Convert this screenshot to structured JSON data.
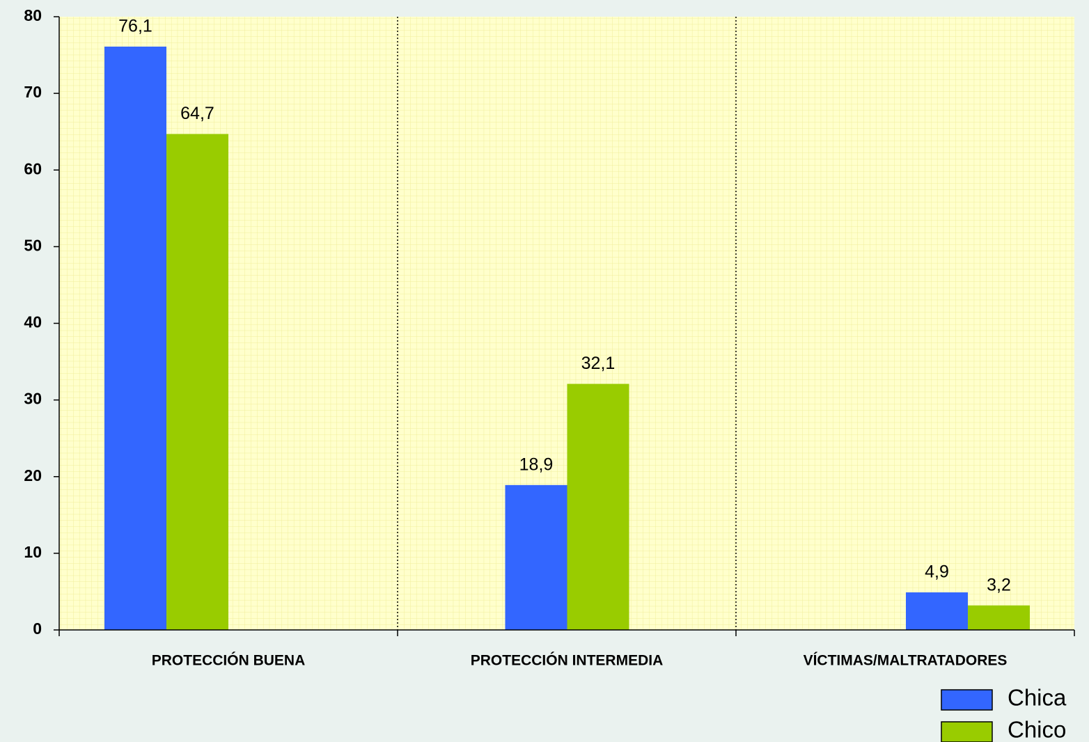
{
  "chart_data": {
    "type": "bar",
    "categories": [
      "PROTECCIÓN BUENA",
      "PROTECCIÓN INTERMEDIA",
      "VÍCTIMAS/MALTRATADORES"
    ],
    "series": [
      {
        "name": "Chica",
        "color": "#3366ff",
        "values": [
          76.1,
          18.9,
          4.9
        ],
        "value_labels": [
          "76,1",
          "18,9",
          "4,9"
        ]
      },
      {
        "name": "Chico",
        "color": "#99cc00",
        "values": [
          64.7,
          32.1,
          3.2
        ],
        "value_labels": [
          "64,7",
          "32,1",
          "3,2"
        ]
      }
    ],
    "ylim": [
      0,
      80
    ],
    "yticks": [
      0,
      10,
      20,
      30,
      40,
      50,
      60,
      70,
      80
    ],
    "legend": "bottom-right"
  }
}
